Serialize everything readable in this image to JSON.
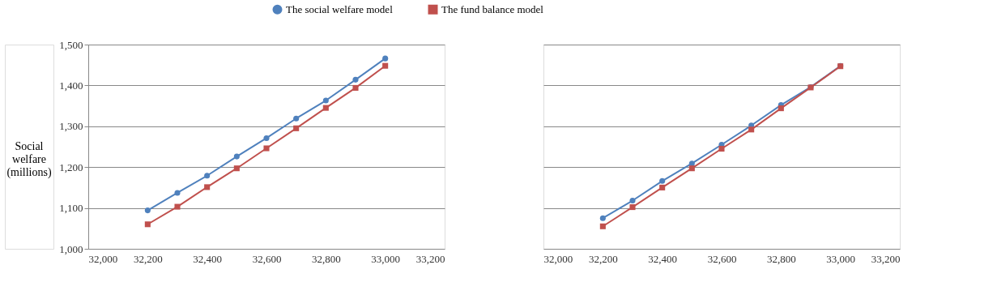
{
  "chart_data": [
    {
      "type": "line",
      "ylabel": "Social welfare (millions)",
      "x": [
        32200,
        32300,
        32400,
        32500,
        32600,
        32700,
        32800,
        32900,
        33000
      ],
      "series": [
        {
          "name": "The social welfare model",
          "color": "#4f81bd",
          "marker": "circle",
          "line_style": "solid",
          "values": [
            1094,
            1137,
            1179,
            1226,
            1271,
            1319,
            1363,
            1414,
            1466
          ]
        },
        {
          "name": "The fund balance model",
          "color": "#c0504d",
          "marker": "square",
          "line_style": "solid",
          "values": [
            1060,
            1103,
            1151,
            1197,
            1246,
            1295,
            1345,
            1394,
            1448
          ]
        }
      ],
      "xlim": [
        32000,
        33200
      ],
      "xticks": [
        {
          "value": 32000,
          "label": "32,000"
        },
        {
          "value": 32200,
          "label": "32,200"
        },
        {
          "value": 32400,
          "label": "32,400"
        },
        {
          "value": 32600,
          "label": "32,600"
        },
        {
          "value": 32800,
          "label": "32,800"
        },
        {
          "value": 33000,
          "label": "33,000"
        },
        {
          "value": 33200,
          "label": "33,200"
        }
      ],
      "ylim": [
        1000,
        1500
      ],
      "yticks": [
        {
          "value": 1000,
          "label": "1,000"
        },
        {
          "value": 1100,
          "label": "1,100"
        },
        {
          "value": 1200,
          "label": "1,200"
        },
        {
          "value": 1300,
          "label": "1,300"
        },
        {
          "value": 1400,
          "label": "1,400"
        },
        {
          "value": 1500,
          "label": "1,500"
        }
      ],
      "grid": "y",
      "legend": "top"
    },
    {
      "type": "line",
      "x": [
        32200,
        32300,
        32400,
        32500,
        32600,
        32700,
        32800,
        32900,
        33000
      ],
      "series": [
        {
          "name": "The social welfare model",
          "color": "#4f81bd",
          "marker": "circle",
          "line_style": "solid",
          "values": [
            1075,
            1118,
            1166,
            1209,
            1255,
            1302,
            1352,
            1396,
            1448
          ]
        },
        {
          "name": "The fund balance model",
          "color": "#c0504d",
          "marker": "square",
          "line_style": "solid",
          "values": [
            1055,
            1102,
            1150,
            1197,
            1245,
            1292,
            1344,
            1395,
            1447
          ]
        }
      ],
      "xlim": [
        32000,
        33200
      ],
      "xticks": [
        {
          "value": 32000,
          "label": "32,000"
        },
        {
          "value": 32200,
          "label": "32,200"
        },
        {
          "value": 32400,
          "label": "32,400"
        },
        {
          "value": 32600,
          "label": "32,600"
        },
        {
          "value": 32800,
          "label": "32,800"
        },
        {
          "value": 33000,
          "label": "33,000"
        },
        {
          "value": 33200,
          "label": "33,200"
        }
      ],
      "ylim": [
        1000,
        1500
      ],
      "yticks": [
        1000,
        1100,
        1200,
        1300,
        1400,
        1500
      ],
      "grid": "y",
      "tick_labels": "x"
    }
  ]
}
